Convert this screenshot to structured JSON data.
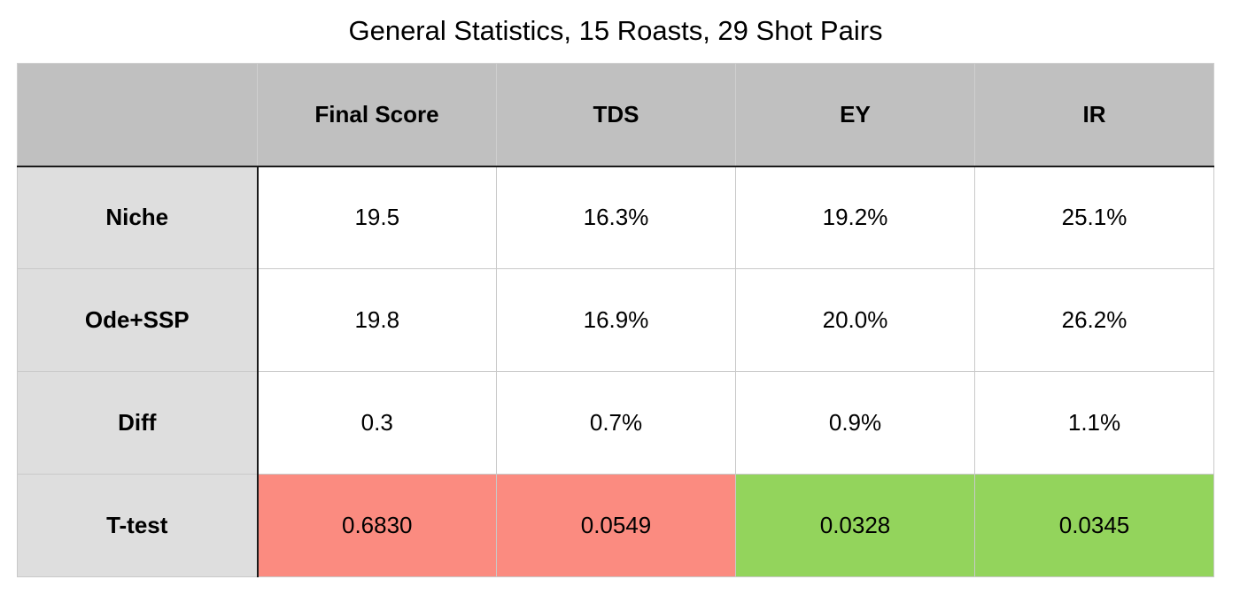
{
  "chart_data": {
    "type": "table",
    "title": "General Statistics, 15 Roasts, 29 Shot Pairs",
    "columns": [
      "",
      "Final Score",
      "TDS",
      "EY",
      "IR"
    ],
    "rows": [
      {
        "label": "Niche",
        "cells": [
          "19.5",
          "16.3%",
          "19.2%",
          "25.1%"
        ]
      },
      {
        "label": "Ode+SSP",
        "cells": [
          "19.8",
          "16.9%",
          "20.0%",
          "26.2%"
        ]
      },
      {
        "label": "Diff",
        "cells": [
          "0.3",
          "0.7%",
          "0.9%",
          "1.1%"
        ]
      },
      {
        "label": "T-test",
        "cells": [
          "0.6830",
          "0.0549",
          "0.0328",
          "0.0345"
        ]
      }
    ],
    "colors": {
      "header_bg": "#c0c0c0",
      "row_header_bg": "#dedede",
      "not_significant": "#fb8b80",
      "significant": "#93d45c"
    },
    "ttest_significant": [
      false,
      false,
      true,
      true
    ]
  }
}
